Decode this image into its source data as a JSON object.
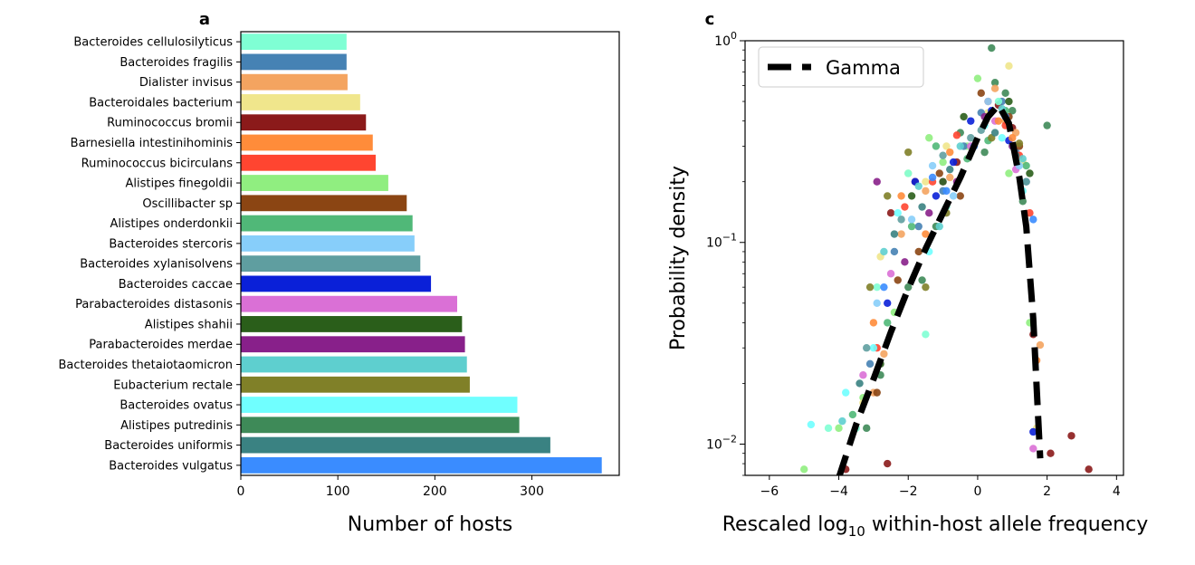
{
  "chart_data": [
    {
      "panel": "a",
      "type": "bar",
      "orientation": "horizontal",
      "categories": [
        "Bacteroides cellulosilyticus",
        "Bacteroides fragilis",
        "Dialister invisus",
        "Bacteroidales bacterium",
        "Ruminococcus bromii",
        "Barnesiella intestinihominis",
        "Ruminococcus bicirculans",
        "Alistipes finegoldii",
        "Oscillibacter sp",
        "Alistipes onderdonkii",
        "Bacteroides stercoris",
        "Bacteroides xylanisolvens",
        "Bacteroides caccae",
        "Parabacteroides distasonis",
        "Alistipes shahii",
        "Parabacteroides merdae",
        "Bacteroides thetaiotaomicron",
        "Eubacterium rectale",
        "Bacteroides ovatus",
        "Alistipes putredinis",
        "Bacteroides uniformis",
        "Bacteroides vulgatus"
      ],
      "values": [
        109,
        109,
        110,
        123,
        129,
        136,
        139,
        152,
        171,
        177,
        179,
        185,
        196,
        223,
        228,
        231,
        233,
        236,
        285,
        287,
        319,
        372
      ],
      "colors": [
        "#7fffd4",
        "#4682b4",
        "#f4a460",
        "#f0e68c",
        "#8b1a1a",
        "#ff8c3a",
        "#ff4530",
        "#90ee80",
        "#8b4513",
        "#50b878",
        "#87cefa",
        "#5f9ea0",
        "#0a20d8",
        "#da70d6",
        "#2a5e1a",
        "#88208a",
        "#5ecfcf",
        "#808028",
        "#70ffff",
        "#3e8a58",
        "#3a8282",
        "#3a8cff"
      ],
      "xlabel": "Number of hosts",
      "ylabel": "",
      "xlim": [
        0,
        390
      ],
      "xticks": [
        0,
        100,
        200,
        300
      ],
      "grid": false
    },
    {
      "panel": "c",
      "type": "scatter",
      "yscale": "log",
      "xlabel_prefix": "Rescaled log",
      "xlabel_sub": "10",
      "xlabel_suffix": " within-host allele frequency",
      "ylabel": "Probability density",
      "xlim": [
        -6.7,
        4.2
      ],
      "ylim": [
        0.007,
        1.0
      ],
      "xticks": [
        -6,
        -4,
        -2,
        0,
        2,
        4
      ],
      "xtick_labels": [
        "−6",
        "−4",
        "−2",
        "0",
        "2",
        "4"
      ],
      "yticks": [
        0.01,
        0.1,
        1
      ],
      "ytick_base": "10",
      "ytick_exponents": [
        "−2",
        "−1",
        "0"
      ],
      "legend": {
        "label": "Gamma",
        "position": "top-left"
      },
      "gamma_curve": {
        "x": [
          -4.0,
          -3.5,
          -3.0,
          -2.5,
          -2.0,
          -1.5,
          -1.0,
          -0.5,
          0.0,
          0.3,
          0.6,
          0.9,
          1.2,
          1.4,
          1.6,
          1.8
        ],
        "y": [
          0.0068,
          0.0125,
          0.021,
          0.036,
          0.059,
          0.093,
          0.14,
          0.21,
          0.33,
          0.42,
          0.48,
          0.39,
          0.21,
          0.12,
          0.042,
          0.0085
        ]
      },
      "series": [
        {
          "color": "#3e8a58",
          "points": [
            [
              0.4,
              0.92
            ],
            [
              0.8,
              0.55
            ],
            [
              -0.5,
              0.35
            ],
            [
              1.3,
              0.16
            ],
            [
              -1.2,
              0.12
            ],
            [
              -2.0,
              0.06
            ],
            [
              -2.8,
              0.022
            ],
            [
              0.5,
              0.62
            ],
            [
              1.0,
              0.45
            ],
            [
              -3.2,
              0.012
            ],
            [
              2.0,
              0.38
            ],
            [
              -1.6,
              0.065
            ],
            [
              0.2,
              0.28
            ]
          ]
        },
        {
          "color": "#90ee80",
          "points": [
            [
              -4.0,
              0.012
            ],
            [
              -3.3,
              0.017
            ],
            [
              0.0,
              0.65
            ],
            [
              -1.4,
              0.33
            ],
            [
              -5.0,
              0.0075
            ],
            [
              0.9,
              0.22
            ],
            [
              -2.4,
              0.045
            ],
            [
              1.5,
              0.04
            ],
            [
              -0.3,
              0.3
            ],
            [
              -1.0,
              0.25
            ]
          ]
        },
        {
          "color": "#8b1a1a",
          "points": [
            [
              0.6,
              0.48
            ],
            [
              1.0,
              0.37
            ],
            [
              -1.8,
              0.2
            ],
            [
              -2.5,
              0.14
            ],
            [
              2.7,
              0.011
            ],
            [
              3.2,
              0.0075
            ],
            [
              -3.8,
              0.0075
            ],
            [
              -0.6,
              0.25
            ],
            [
              1.6,
              0.035
            ],
            [
              -2.6,
              0.008
            ],
            [
              2.1,
              0.009
            ]
          ]
        },
        {
          "color": "#f4a460",
          "points": [
            [
              0.5,
              0.58
            ],
            [
              1.1,
              0.35
            ],
            [
              -0.8,
              0.21
            ],
            [
              -2.2,
              0.11
            ],
            [
              1.8,
              0.031
            ],
            [
              -3.0,
              0.018
            ],
            [
              0.8,
              0.4
            ],
            [
              -1.5,
              0.18
            ],
            [
              -2.7,
              0.028
            ]
          ]
        },
        {
          "color": "#f0e68c",
          "points": [
            [
              0.9,
              0.75
            ],
            [
              -1.5,
              0.2
            ],
            [
              -2.8,
              0.085
            ],
            [
              1.7,
              0.012
            ],
            [
              0.3,
              0.44
            ],
            [
              -0.9,
              0.3
            ],
            [
              -3.3,
              0.016
            ],
            [
              1.3,
              0.25
            ],
            [
              -2.0,
              0.22
            ]
          ]
        },
        {
          "color": "#4682b4",
          "points": [
            [
              0.1,
              0.44
            ],
            [
              0.7,
              0.5
            ],
            [
              -1.0,
              0.18
            ],
            [
              -2.4,
              0.09
            ],
            [
              1.4,
              0.2
            ],
            [
              -0.4,
              0.3
            ],
            [
              -3.1,
              0.025
            ],
            [
              -1.7,
              0.12
            ],
            [
              1.1,
              0.28
            ]
          ]
        },
        {
          "color": "#0a20d8",
          "points": [
            [
              -0.2,
              0.4
            ],
            [
              0.9,
              0.32
            ],
            [
              -1.8,
              0.2
            ],
            [
              1.6,
              0.0115
            ],
            [
              -2.6,
              0.05
            ],
            [
              -0.7,
              0.25
            ],
            [
              0.4,
              0.45
            ],
            [
              -1.2,
              0.17
            ]
          ]
        },
        {
          "color": "#ff4530",
          "points": [
            [
              0.3,
              0.5
            ],
            [
              -0.6,
              0.34
            ],
            [
              -2.1,
              0.15
            ],
            [
              1.2,
              0.27
            ],
            [
              -1.3,
              0.2
            ],
            [
              0.8,
              0.38
            ],
            [
              -2.9,
              0.03
            ],
            [
              1.5,
              0.14
            ]
          ]
        },
        {
          "color": "#7fffd4",
          "points": [
            [
              -1.5,
              0.035
            ],
            [
              -4.3,
              0.012
            ],
            [
              -2.0,
              0.22
            ],
            [
              0.6,
              0.5
            ],
            [
              -2.9,
              0.06
            ],
            [
              1.0,
              0.3
            ],
            [
              -0.9,
              0.15
            ],
            [
              -3.5,
              0.012
            ]
          ]
        },
        {
          "color": "#70ffff",
          "points": [
            [
              -4.8,
              0.0125
            ],
            [
              -3.8,
              0.018
            ],
            [
              -2.3,
              0.14
            ],
            [
              0.2,
              0.38
            ],
            [
              -1.4,
              0.09
            ],
            [
              1.3,
              0.18
            ],
            [
              -3.0,
              0.03
            ],
            [
              0.7,
              0.33
            ]
          ]
        },
        {
          "color": "#da70d6",
          "points": [
            [
              1.6,
              0.0095
            ],
            [
              -2.5,
              0.07
            ],
            [
              0.5,
              0.4
            ],
            [
              -1.0,
              0.2
            ],
            [
              -3.3,
              0.022
            ],
            [
              1.1,
              0.23
            ],
            [
              -0.2,
              0.3
            ]
          ]
        },
        {
          "color": "#8b4513",
          "points": [
            [
              -2.3,
              0.065
            ],
            [
              0.1,
              0.55
            ],
            [
              -1.1,
              0.22
            ],
            [
              1.2,
              0.3
            ],
            [
              -0.5,
              0.17
            ],
            [
              -2.9,
              0.018
            ],
            [
              0.9,
              0.42
            ],
            [
              -1.7,
              0.09
            ]
          ]
        },
        {
          "color": "#ff8c3a",
          "points": [
            [
              -2.2,
              0.17
            ],
            [
              0.6,
              0.4
            ],
            [
              -3.0,
              0.04
            ],
            [
              1.7,
              0.026
            ],
            [
              -0.8,
              0.28
            ],
            [
              1.0,
              0.33
            ],
            [
              -1.5,
              0.11
            ]
          ]
        },
        {
          "color": "#50b878",
          "points": [
            [
              -2.6,
              0.04
            ],
            [
              0.3,
              0.32
            ],
            [
              -1.2,
              0.3
            ],
            [
              1.4,
              0.24
            ],
            [
              -3.6,
              0.014
            ],
            [
              -0.3,
              0.26
            ],
            [
              0.8,
              0.45
            ],
            [
              -1.9,
              0.12
            ]
          ]
        },
        {
          "color": "#808028",
          "points": [
            [
              -2.6,
              0.17
            ],
            [
              -2.0,
              0.28
            ],
            [
              0.4,
              0.33
            ],
            [
              -3.1,
              0.06
            ],
            [
              1.2,
              0.31
            ],
            [
              -0.9,
              0.14
            ],
            [
              -1.5,
              0.06
            ]
          ]
        },
        {
          "color": "#5ecfcf",
          "points": [
            [
              -1.7,
              0.19
            ],
            [
              -2.7,
              0.09
            ],
            [
              0.7,
              0.46
            ],
            [
              -3.9,
              0.013
            ],
            [
              1.3,
              0.26
            ],
            [
              -0.5,
              0.3
            ],
            [
              -1.1,
              0.12
            ]
          ]
        },
        {
          "color": "#88208a",
          "points": [
            [
              -2.9,
              0.2
            ],
            [
              0.2,
              0.42
            ],
            [
              -1.4,
              0.14
            ],
            [
              1.0,
              0.3
            ],
            [
              -0.6,
              0.2
            ],
            [
              -2.1,
              0.08
            ]
          ]
        },
        {
          "color": "#2a5e1a",
          "points": [
            [
              -1.9,
              0.17
            ],
            [
              0.9,
              0.5
            ],
            [
              -0.4,
              0.42
            ],
            [
              1.5,
              0.22
            ],
            [
              -2.8,
              0.025
            ],
            [
              -1.0,
              0.2
            ]
          ]
        },
        {
          "color": "#3a8282",
          "points": [
            [
              -0.8,
              0.23
            ],
            [
              -2.4,
              0.11
            ],
            [
              0.5,
              0.35
            ],
            [
              1.1,
              0.27
            ],
            [
              -3.4,
              0.02
            ],
            [
              -1.6,
              0.15
            ]
          ]
        },
        {
          "color": "#5f9ea0",
          "points": [
            [
              -1.0,
              0.27
            ],
            [
              -2.2,
              0.13
            ],
            [
              0.1,
              0.36
            ],
            [
              1.4,
              0.2
            ],
            [
              -3.2,
              0.03
            ],
            [
              -0.2,
              0.33
            ]
          ]
        },
        {
          "color": "#87cefa",
          "points": [
            [
              -0.7,
              0.17
            ],
            [
              -1.9,
              0.13
            ],
            [
              0.3,
              0.5
            ],
            [
              1.2,
              0.24
            ],
            [
              -2.9,
              0.05
            ],
            [
              -1.3,
              0.24
            ]
          ]
        },
        {
          "color": "#3a8cff",
          "points": [
            [
              -0.1,
              0.3
            ],
            [
              -1.3,
              0.21
            ],
            [
              0.8,
              0.42
            ],
            [
              -2.7,
              0.06
            ],
            [
              1.6,
              0.13
            ],
            [
              -0.9,
              0.18
            ]
          ]
        }
      ]
    }
  ],
  "panel_letters": {
    "a": "a",
    "c": "c"
  }
}
